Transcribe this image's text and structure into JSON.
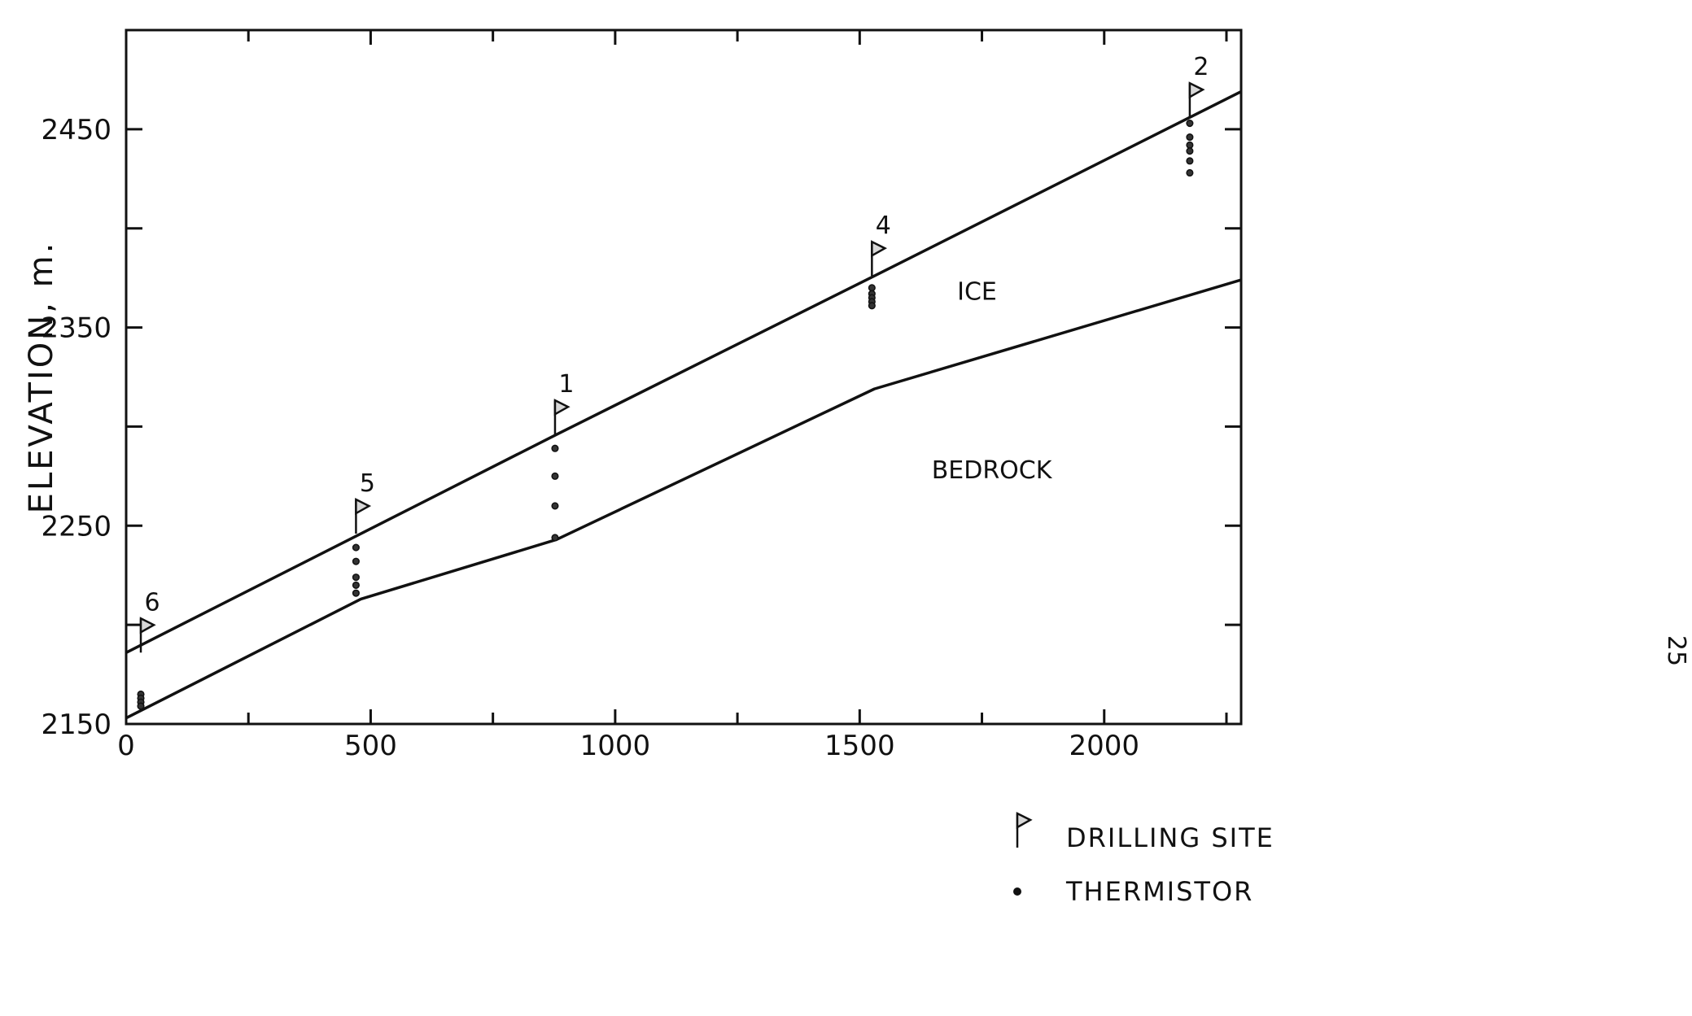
{
  "page_number": "25",
  "chart_data": {
    "type": "line",
    "xlabel": "",
    "ylabel": "ELEVATION, m.",
    "xlim": [
      0,
      2280
    ],
    "ylim": [
      2150,
      2500
    ],
    "x_ticks": [
      0,
      500,
      1000,
      1500,
      2000
    ],
    "y_ticks": [
      2150,
      2250,
      2350,
      2450
    ],
    "series": [
      {
        "name": "",
        "role": "ice-surface",
        "x": [
          0,
          480,
          880,
          1530,
          2280
        ],
        "y": [
          2186,
          2246,
          2296,
          2376,
          2469
        ]
      },
      {
        "name": "",
        "role": "bedrock-surface",
        "x": [
          0,
          480,
          880,
          1530,
          2280
        ],
        "y": [
          2153,
          2213,
          2243,
          2319,
          2374
        ]
      }
    ],
    "regions": [
      {
        "label": "ICE",
        "x": 1740,
        "y": 2364
      },
      {
        "label": "BEDROCK",
        "x": 1770,
        "y": 2274
      }
    ],
    "sites": [
      {
        "label": "6",
        "x": 30,
        "surface": 2186,
        "thermistors": [
          2165,
          2163,
          2161,
          2159
        ]
      },
      {
        "label": "5",
        "x": 470,
        "surface": 2246,
        "thermistors": [
          2239,
          2232,
          2224,
          2220,
          2216
        ]
      },
      {
        "label": "1",
        "x": 877,
        "surface": 2296,
        "thermistors": [
          2289,
          2275,
          2260,
          2244
        ]
      },
      {
        "label": "4",
        "x": 1525,
        "surface": 2376,
        "thermistors": [
          2370,
          2367,
          2365,
          2363,
          2361
        ]
      },
      {
        "label": "2",
        "x": 2175,
        "surface": 2456,
        "thermistors": [
          2453,
          2446,
          2442,
          2439,
          2434,
          2428
        ]
      }
    ],
    "legend": {
      "position": "lower-right",
      "entries": [
        {
          "label": "DRILLING SITE",
          "marker": "flag"
        },
        {
          "label": "THERMISTOR",
          "marker": "dot"
        }
      ]
    },
    "grid": false
  }
}
